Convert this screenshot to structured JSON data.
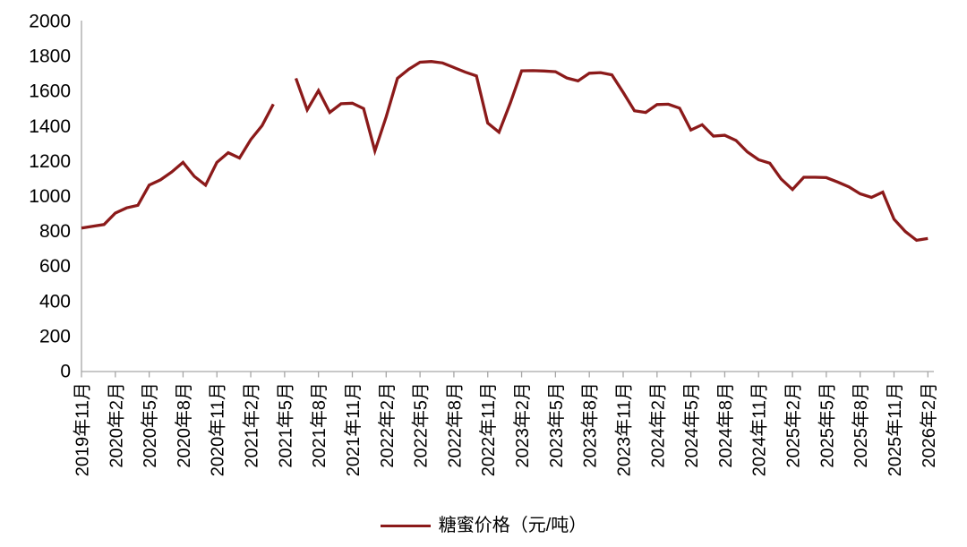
{
  "chart_data": {
    "type": "line",
    "title": "",
    "legend_label": "糖蜜价格（元/吨）",
    "legend_position": "bottom",
    "grid": false,
    "ylim": [
      0,
      2000
    ],
    "y_ticks": [
      0,
      200,
      400,
      600,
      800,
      1000,
      1200,
      1400,
      1600,
      1800,
      2000
    ],
    "x_tick_labels": [
      "2019年11月",
      "2020年2月",
      "2020年5月",
      "2020年8月",
      "2020年11月",
      "2021年2月",
      "2021年5月",
      "2021年8月",
      "2021年11月",
      "2022年2月",
      "2022年5月",
      "2022年8月",
      "2022年11月",
      "2023年2月",
      "2023年5月",
      "2023年8月",
      "2023年11月",
      "2024年2月",
      "2024年5月",
      "2024年8月",
      "2024年11月",
      "2025年2月",
      "2025年5月",
      "2025年8月",
      "2025年11月",
      "2026年2月"
    ],
    "months": [
      "2019-11",
      "2019-12",
      "2020-01",
      "2020-02",
      "2020-03",
      "2020-04",
      "2020-05",
      "2020-06",
      "2020-07",
      "2020-08",
      "2020-09",
      "2020-10",
      "2020-11",
      "2020-12",
      "2021-01",
      "2021-02",
      "2021-03",
      "2021-04",
      "2021-05",
      "2021-06",
      "2021-07",
      "2021-08",
      "2021-09",
      "2021-10",
      "2021-11",
      "2021-12",
      "2022-01",
      "2022-02",
      "2022-03",
      "2022-04",
      "2022-05",
      "2022-06",
      "2022-07",
      "2022-08",
      "2022-09",
      "2022-10",
      "2022-11",
      "2022-12",
      "2023-01",
      "2023-02",
      "2023-03",
      "2023-04",
      "2023-05",
      "2023-06",
      "2023-07",
      "2023-08",
      "2023-09",
      "2023-10",
      "2023-11",
      "2023-12",
      "2024-01",
      "2024-02",
      "2024-03",
      "2024-04",
      "2024-05",
      "2024-06",
      "2024-07",
      "2024-08",
      "2024-09",
      "2024-10",
      "2024-11",
      "2024-12",
      "2025-01",
      "2025-02",
      "2025-03",
      "2025-04",
      "2025-05",
      "2025-06",
      "2025-07",
      "2025-08",
      "2025-09",
      "2025-10",
      "2025-11",
      "2025-12",
      "2026-01",
      "2026-02"
    ],
    "series": [
      {
        "name": "糖蜜价格（元/吨）",
        "color": "#8B1A1A",
        "values": [
          815,
          825,
          835,
          900,
          930,
          945,
          1060,
          1090,
          1135,
          1190,
          1110,
          1060,
          1190,
          1245,
          1215,
          1320,
          1400,
          1522,
          null,
          1670,
          1490,
          1600,
          1475,
          1525,
          1528,
          1497,
          1255,
          1450,
          1670,
          1722,
          1762,
          1766,
          1758,
          1732,
          1706,
          1684,
          1415,
          1362,
          1530,
          1713,
          1714,
          1712,
          1708,
          1672,
          1655,
          1699,
          1703,
          1690,
          1590,
          1485,
          1475,
          1520,
          1522,
          1500,
          1375,
          1405,
          1340,
          1345,
          1315,
          1250,
          1205,
          1185,
          1095,
          1035,
          1105,
          1105,
          1103,
          1078,
          1050,
          1010,
          990,
          1020,
          865,
          795,
          745,
          755
        ]
      }
    ],
    "data_gap_months": [
      "2021-05"
    ],
    "axis_color": "#A6A6A6",
    "text_color": "#000000"
  }
}
